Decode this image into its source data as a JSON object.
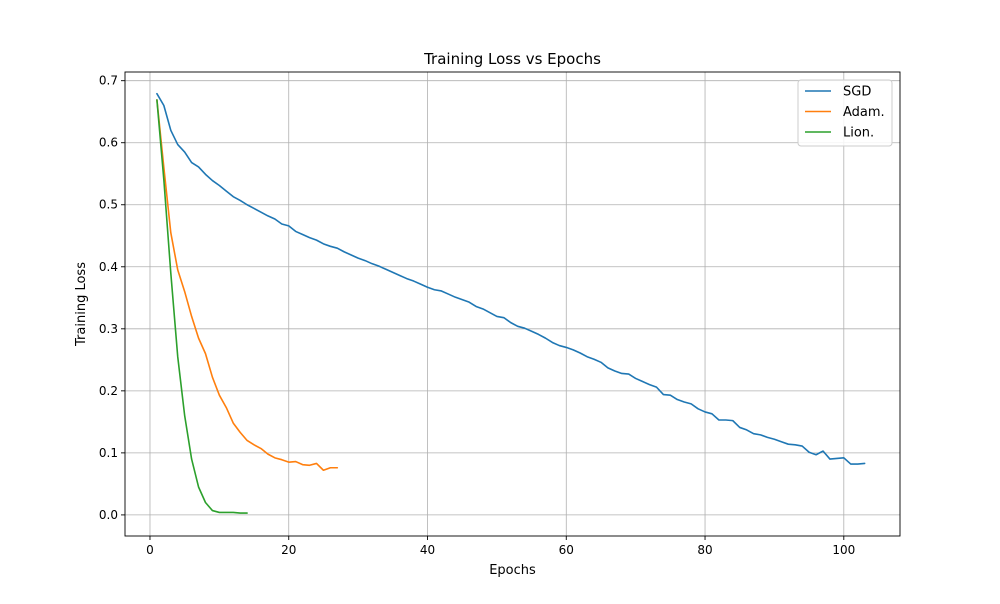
{
  "chart_data": {
    "type": "line",
    "title": "Training Loss vs Epochs",
    "xlabel": "Epochs",
    "ylabel": "Training Loss",
    "xlim": [
      -3.6,
      108.1
    ],
    "ylim": [
      -0.034,
      0.714
    ],
    "xticks": [
      0,
      20,
      40,
      60,
      80,
      100
    ],
    "yticks": [
      0.0,
      0.1,
      0.2,
      0.3,
      0.4,
      0.5,
      0.6,
      0.7
    ],
    "ytick_labels": [
      "0.0",
      "0.1",
      "0.2",
      "0.3",
      "0.4",
      "0.5",
      "0.6",
      "0.7"
    ],
    "grid": true,
    "legend_position": "top-right",
    "series": [
      {
        "name": "SGD",
        "color": "#1f77b4",
        "x": [
          1,
          2,
          3,
          4,
          5,
          6,
          7,
          8,
          9,
          10,
          11,
          12,
          13,
          14,
          15,
          16,
          17,
          18,
          19,
          20,
          21,
          22,
          23,
          24,
          25,
          26,
          27,
          28,
          29,
          30,
          31,
          32,
          33,
          34,
          35,
          36,
          37,
          38,
          39,
          40,
          41,
          42,
          43,
          44,
          45,
          46,
          47,
          48,
          49,
          50,
          51,
          52,
          53,
          54,
          55,
          56,
          57,
          58,
          59,
          60,
          61,
          62,
          63,
          64,
          65,
          66,
          67,
          68,
          69,
          70,
          71,
          72,
          73,
          74,
          75,
          76,
          77,
          78,
          79,
          80,
          81,
          82,
          83,
          84,
          85,
          86,
          87,
          88,
          89,
          90,
          91,
          92,
          93,
          94,
          95,
          96,
          97,
          98,
          99,
          100,
          101,
          102,
          103
        ],
        "y": [
          0.679,
          0.66,
          0.62,
          0.597,
          0.585,
          0.568,
          0.561,
          0.549,
          0.539,
          0.531,
          0.522,
          0.513,
          0.507,
          0.5,
          0.494,
          0.488,
          0.482,
          0.477,
          0.469,
          0.466,
          0.457,
          0.452,
          0.447,
          0.443,
          0.437,
          0.433,
          0.43,
          0.424,
          0.419,
          0.414,
          0.41,
          0.405,
          0.401,
          0.396,
          0.391,
          0.386,
          0.381,
          0.377,
          0.372,
          0.367,
          0.363,
          0.361,
          0.356,
          0.351,
          0.347,
          0.343,
          0.336,
          0.332,
          0.326,
          0.32,
          0.318,
          0.31,
          0.304,
          0.301,
          0.296,
          0.291,
          0.285,
          0.278,
          0.273,
          0.27,
          0.266,
          0.261,
          0.255,
          0.251,
          0.246,
          0.237,
          0.232,
          0.228,
          0.227,
          0.22,
          0.215,
          0.21,
          0.206,
          0.194,
          0.193,
          0.186,
          0.182,
          0.179,
          0.171,
          0.166,
          0.163,
          0.153,
          0.153,
          0.152,
          0.141,
          0.137,
          0.131,
          0.129,
          0.125,
          0.122,
          0.118,
          0.114,
          0.113,
          0.111,
          0.101,
          0.097,
          0.103,
          0.09,
          0.091,
          0.092,
          0.082,
          0.082,
          0.083
        ]
      },
      {
        "name": "Adam.",
        "color": "#ff7f0e",
        "x": [
          1,
          2,
          3,
          4,
          5,
          6,
          7,
          8,
          9,
          10,
          11,
          12,
          13,
          14,
          15,
          16,
          17,
          18,
          19,
          20,
          21,
          22,
          23,
          24,
          25,
          26,
          27
        ],
        "y": [
          0.669,
          0.56,
          0.455,
          0.395,
          0.36,
          0.32,
          0.285,
          0.26,
          0.222,
          0.193,
          0.173,
          0.148,
          0.133,
          0.12,
          0.113,
          0.107,
          0.098,
          0.092,
          0.089,
          0.085,
          0.086,
          0.081,
          0.08,
          0.083,
          0.072,
          0.076,
          0.076
        ]
      },
      {
        "name": "Lion.",
        "color": "#2ca02c",
        "x": [
          1,
          2,
          3,
          4,
          5,
          6,
          7,
          8,
          9,
          10,
          11,
          12,
          13,
          14
        ],
        "y": [
          0.669,
          0.54,
          0.39,
          0.255,
          0.16,
          0.09,
          0.045,
          0.02,
          0.007,
          0.004,
          0.004,
          0.004,
          0.003,
          0.003
        ]
      }
    ]
  }
}
